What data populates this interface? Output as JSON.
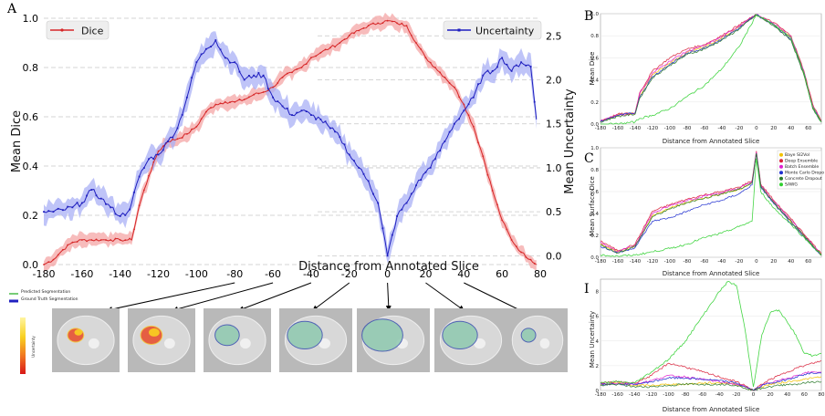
{
  "colors": {
    "dice": "#d62728",
    "uncertainty": "#1f1fbf",
    "dice_band": "#f4a5a5",
    "unc_band": "#aab0f5",
    "grid": "#c8c8c8",
    "bayes": "#f2c200",
    "deep_ensemble": "#d9203a",
    "batch_ensemble": "#e020d0",
    "mc_dropout": "#1f2fd0",
    "concrete_dropout": "#2a7a2a",
    "sawg": "#30d030",
    "ct_gray": "#b9b9b9"
  },
  "panel_letters": {
    "a": "A",
    "b": "B",
    "c": "C",
    "d": "I"
  },
  "main_chart": {
    "xlabel": "Distance from Annotated Slice",
    "ylabel_left": "Mean Dice",
    "ylabel_right": "Mean Uncertainty",
    "legend_dice": "Dice",
    "legend_unc": "Uncertainty",
    "legend_placement_dice": "top-left",
    "legend_placement_unc": "top-right",
    "xlim": [
      -180,
      80
    ],
    "ylim_left": [
      0,
      1
    ],
    "ylim_right": [
      -0.1,
      2.7
    ],
    "x_ticks": [
      "-180",
      "-160",
      "-140",
      "-120",
      "-100",
      "-80",
      "-60",
      "-40",
      "-20",
      "0",
      "20",
      "40",
      "60",
      "80"
    ],
    "y_left_ticks": [
      "0.0",
      "0.2",
      "0.4",
      "0.6",
      "0.8",
      "1.0"
    ],
    "y_right_ticks": [
      "0.0",
      "0.5",
      "1.0",
      "1.5",
      "2.0",
      "2.5"
    ],
    "grid": "horizontal dashed"
  },
  "chart_data": [
    {
      "type": "line",
      "panel": "A",
      "x": [
        -180,
        -175,
        -170,
        -165,
        -160,
        -155,
        -150,
        -145,
        -140,
        -136,
        -134,
        -130,
        -125,
        -120,
        -115,
        -110,
        -105,
        -100,
        -95,
        -90,
        -85,
        -80,
        -75,
        -70,
        -65,
        -60,
        -55,
        -50,
        -45,
        -40,
        -35,
        -30,
        -25,
        -20,
        -15,
        -10,
        -5,
        0,
        5,
        10,
        15,
        20,
        25,
        30,
        35,
        40,
        45,
        50,
        55,
        60,
        65,
        70,
        75,
        78
      ],
      "series": [
        {
          "name": "Dice",
          "axis": "left",
          "values": [
            0.0,
            0.02,
            0.06,
            0.09,
            0.1,
            0.1,
            0.1,
            0.1,
            0.1,
            0.1,
            0.1,
            0.24,
            0.36,
            0.46,
            0.5,
            0.51,
            0.53,
            0.56,
            0.62,
            0.65,
            0.66,
            0.66,
            0.67,
            0.69,
            0.7,
            0.72,
            0.76,
            0.78,
            0.8,
            0.84,
            0.86,
            0.88,
            0.9,
            0.93,
            0.95,
            0.97,
            0.98,
            0.99,
            0.98,
            0.97,
            0.9,
            0.84,
            0.8,
            0.76,
            0.72,
            0.65,
            0.56,
            0.44,
            0.3,
            0.18,
            0.1,
            0.05,
            0.02,
            0.0
          ]
        },
        {
          "name": "Uncertainty",
          "axis": "right",
          "values": [
            0.5,
            0.5,
            0.52,
            0.55,
            0.6,
            0.75,
            0.65,
            0.55,
            0.45,
            0.5,
            0.6,
            0.9,
            1.1,
            1.15,
            1.3,
            1.45,
            1.8,
            2.2,
            2.35,
            2.45,
            2.25,
            2.2,
            2.0,
            2.05,
            2.05,
            1.8,
            1.7,
            1.6,
            1.65,
            1.6,
            1.55,
            1.45,
            1.35,
            1.15,
            1.0,
            0.85,
            0.6,
            0.0,
            0.45,
            0.6,
            0.8,
            0.95,
            1.1,
            1.3,
            1.5,
            1.65,
            1.8,
            2.05,
            2.1,
            2.25,
            2.1,
            2.2,
            2.15,
            1.55
          ]
        }
      ]
    },
    {
      "type": "line",
      "panel": "B",
      "xlabel": "Distance from Annotated Slice",
      "ylabel": "Mean Dice",
      "x_ticks": [
        "-180",
        "-160",
        "-140",
        "-120",
        "-100",
        "-80",
        "-60",
        "-40",
        "-20",
        "0",
        "20",
        "40",
        "60"
      ],
      "y_ticks": [
        "0.0",
        "0.2",
        "0.4",
        "0.6",
        "0.8",
        "1.0"
      ],
      "xlim": [
        -180,
        75
      ],
      "ylim": [
        0,
        1
      ],
      "x": [
        -180,
        -160,
        -140,
        -135,
        -120,
        -100,
        -80,
        -60,
        -40,
        -20,
        0,
        20,
        40,
        55,
        65,
        75
      ],
      "series": [
        {
          "name": "Bayes SI2Vol",
          "values": [
            0.02,
            0.08,
            0.1,
            0.25,
            0.45,
            0.55,
            0.65,
            0.7,
            0.78,
            0.88,
            0.99,
            0.9,
            0.78,
            0.45,
            0.15,
            0.02
          ]
        },
        {
          "name": "Deep Ensemble",
          "values": [
            0.03,
            0.09,
            0.1,
            0.28,
            0.48,
            0.6,
            0.68,
            0.72,
            0.8,
            0.9,
            0.99,
            0.92,
            0.8,
            0.48,
            0.18,
            0.03
          ]
        },
        {
          "name": "Batch Ensemble",
          "values": [
            0.03,
            0.08,
            0.1,
            0.27,
            0.46,
            0.57,
            0.66,
            0.71,
            0.79,
            0.89,
            0.99,
            0.91,
            0.79,
            0.47,
            0.16,
            0.02
          ]
        },
        {
          "name": "Monte Carlo Dropout",
          "values": [
            0.02,
            0.08,
            0.1,
            0.24,
            0.43,
            0.54,
            0.64,
            0.69,
            0.77,
            0.87,
            0.99,
            0.9,
            0.77,
            0.46,
            0.15,
            0.02
          ]
        },
        {
          "name": "Concrete Dropout",
          "values": [
            0.02,
            0.07,
            0.09,
            0.23,
            0.42,
            0.53,
            0.63,
            0.68,
            0.76,
            0.86,
            0.99,
            0.89,
            0.76,
            0.44,
            0.14,
            0.02
          ]
        },
        {
          "name": "SAWG",
          "values": [
            0.0,
            0.0,
            0.02,
            0.05,
            0.08,
            0.14,
            0.25,
            0.35,
            0.5,
            0.7,
            0.99,
            0.9,
            0.78,
            0.46,
            0.15,
            0.02
          ]
        }
      ]
    },
    {
      "type": "line",
      "panel": "C",
      "xlabel": "Distance from Annotated Slice",
      "ylabel": "Mean Surface Dice",
      "x_ticks": [
        "-180",
        "-160",
        "-140",
        "-120",
        "-100",
        "-80",
        "-60",
        "-40",
        "-20",
        "0",
        "20",
        "40",
        "60"
      ],
      "y_ticks": [
        "0.0",
        "0.2",
        "0.4",
        "0.6",
        "0.8",
        "1.0"
      ],
      "xlim": [
        -180,
        75
      ],
      "ylim": [
        0,
        1
      ],
      "legend": [
        "Baye SI2Vol",
        "Deep Ensemble",
        "Batch Ensemble",
        "Monte Carlo Dropo",
        "Concrete Dropout",
        "SAWG"
      ],
      "legend_placement": "top-right",
      "x": [
        -180,
        -160,
        -140,
        -120,
        -100,
        -80,
        -60,
        -40,
        -20,
        -5,
        0,
        5,
        20,
        40,
        60,
        75
      ],
      "series": [
        {
          "name": "Baye SI2Vol",
          "values": [
            0.12,
            0.05,
            0.1,
            0.38,
            0.45,
            0.5,
            0.54,
            0.58,
            0.62,
            0.68,
            0.95,
            0.65,
            0.5,
            0.32,
            0.15,
            0.02
          ]
        },
        {
          "name": "Deep Ensemble",
          "values": [
            0.15,
            0.06,
            0.12,
            0.42,
            0.48,
            0.53,
            0.57,
            0.6,
            0.64,
            0.7,
            0.97,
            0.67,
            0.52,
            0.35,
            0.17,
            0.03
          ]
        },
        {
          "name": "Batch Ensemble",
          "values": [
            0.14,
            0.05,
            0.11,
            0.4,
            0.47,
            0.52,
            0.56,
            0.59,
            0.63,
            0.69,
            0.96,
            0.66,
            0.51,
            0.34,
            0.16,
            0.02
          ]
        },
        {
          "name": "Monte Carlo Dropo",
          "values": [
            0.1,
            0.04,
            0.09,
            0.33,
            0.36,
            0.42,
            0.48,
            0.52,
            0.58,
            0.66,
            0.95,
            0.64,
            0.49,
            0.31,
            0.14,
            0.02
          ]
        },
        {
          "name": "Concrete Dropout",
          "values": [
            0.11,
            0.04,
            0.1,
            0.37,
            0.44,
            0.5,
            0.54,
            0.58,
            0.62,
            0.68,
            0.95,
            0.65,
            0.5,
            0.33,
            0.15,
            0.02
          ]
        },
        {
          "name": "SAWG",
          "values": [
            0.02,
            0.01,
            0.02,
            0.05,
            0.08,
            0.12,
            0.18,
            0.22,
            0.28,
            0.33,
            0.9,
            0.6,
            0.45,
            0.3,
            0.14,
            0.02
          ]
        }
      ]
    },
    {
      "type": "line",
      "panel": "I",
      "xlabel": "Distance from Annotated Slice",
      "ylabel": "Mean Uncertainty",
      "x_ticks": [
        "-180",
        "-160",
        "-140",
        "-120",
        "-100",
        "-80",
        "-60",
        "-40",
        "-20",
        "0",
        "20",
        "40",
        "60",
        "80"
      ],
      "y_ticks": [
        "0",
        "2",
        "4",
        "6",
        "8"
      ],
      "xlim": [
        -180,
        80
      ],
      "ylim": [
        0,
        9
      ],
      "x": [
        -180,
        -160,
        -140,
        -120,
        -100,
        -80,
        -60,
        -40,
        -30,
        -20,
        -10,
        0,
        10,
        20,
        30,
        40,
        50,
        60,
        70,
        80
      ],
      "series": [
        {
          "name": "Baye SI2Vol",
          "values": [
            0.5,
            0.6,
            0.4,
            0.4,
            0.5,
            0.5,
            0.6,
            0.6,
            0.6,
            0.5,
            0.3,
            0.0,
            0.3,
            0.5,
            0.6,
            0.7,
            0.8,
            0.9,
            1.0,
            1.1
          ]
        },
        {
          "name": "Deep Ensemble",
          "values": [
            0.6,
            0.7,
            0.6,
            1.2,
            2.2,
            1.9,
            1.5,
            1.1,
            0.9,
            0.7,
            0.4,
            0.0,
            0.5,
            0.9,
            1.2,
            1.5,
            1.8,
            2.0,
            2.2,
            2.4
          ]
        },
        {
          "name": "Batch Ensemble",
          "values": [
            0.5,
            0.6,
            0.5,
            0.8,
            1.2,
            1.1,
            0.9,
            0.7,
            0.6,
            0.5,
            0.3,
            0.0,
            0.4,
            0.6,
            0.8,
            1.0,
            1.2,
            1.4,
            1.5,
            1.5
          ]
        },
        {
          "name": "Monte Carlo Dropo",
          "values": [
            0.5,
            0.5,
            0.5,
            0.7,
            1.0,
            1.0,
            0.9,
            0.8,
            0.7,
            0.6,
            0.3,
            0.0,
            0.4,
            0.6,
            0.7,
            0.9,
            1.1,
            1.3,
            1.4,
            1.4
          ]
        },
        {
          "name": "Concrete Dropout",
          "values": [
            0.4,
            0.5,
            0.3,
            0.3,
            0.4,
            0.5,
            0.5,
            0.5,
            0.5,
            0.4,
            0.2,
            0.0,
            0.2,
            0.3,
            0.4,
            0.5,
            0.5,
            0.6,
            0.7,
            0.7
          ]
        },
        {
          "name": "SAWG",
          "values": [
            0.6,
            0.7,
            0.6,
            1.5,
            2.5,
            4.0,
            6.0,
            8.0,
            8.8,
            8.5,
            5.0,
            0.3,
            4.5,
            6.3,
            6.5,
            5.5,
            4.5,
            3.0,
            2.8,
            3.0
          ]
        }
      ]
    }
  ],
  "ct_legend": {
    "pred_label": "Predicted Segmentation",
    "gt_label": "Ground Truth Segmentation",
    "colorbar_label": "Uncertainty"
  },
  "ct_slices": [
    {
      "label_x": "-80"
    },
    {
      "label_x": "-60"
    },
    {
      "label_x": "-40"
    },
    {
      "label_x": "-20"
    },
    {
      "label_x": "0"
    },
    {
      "label_x": "20"
    },
    {
      "label_x": "40"
    }
  ]
}
